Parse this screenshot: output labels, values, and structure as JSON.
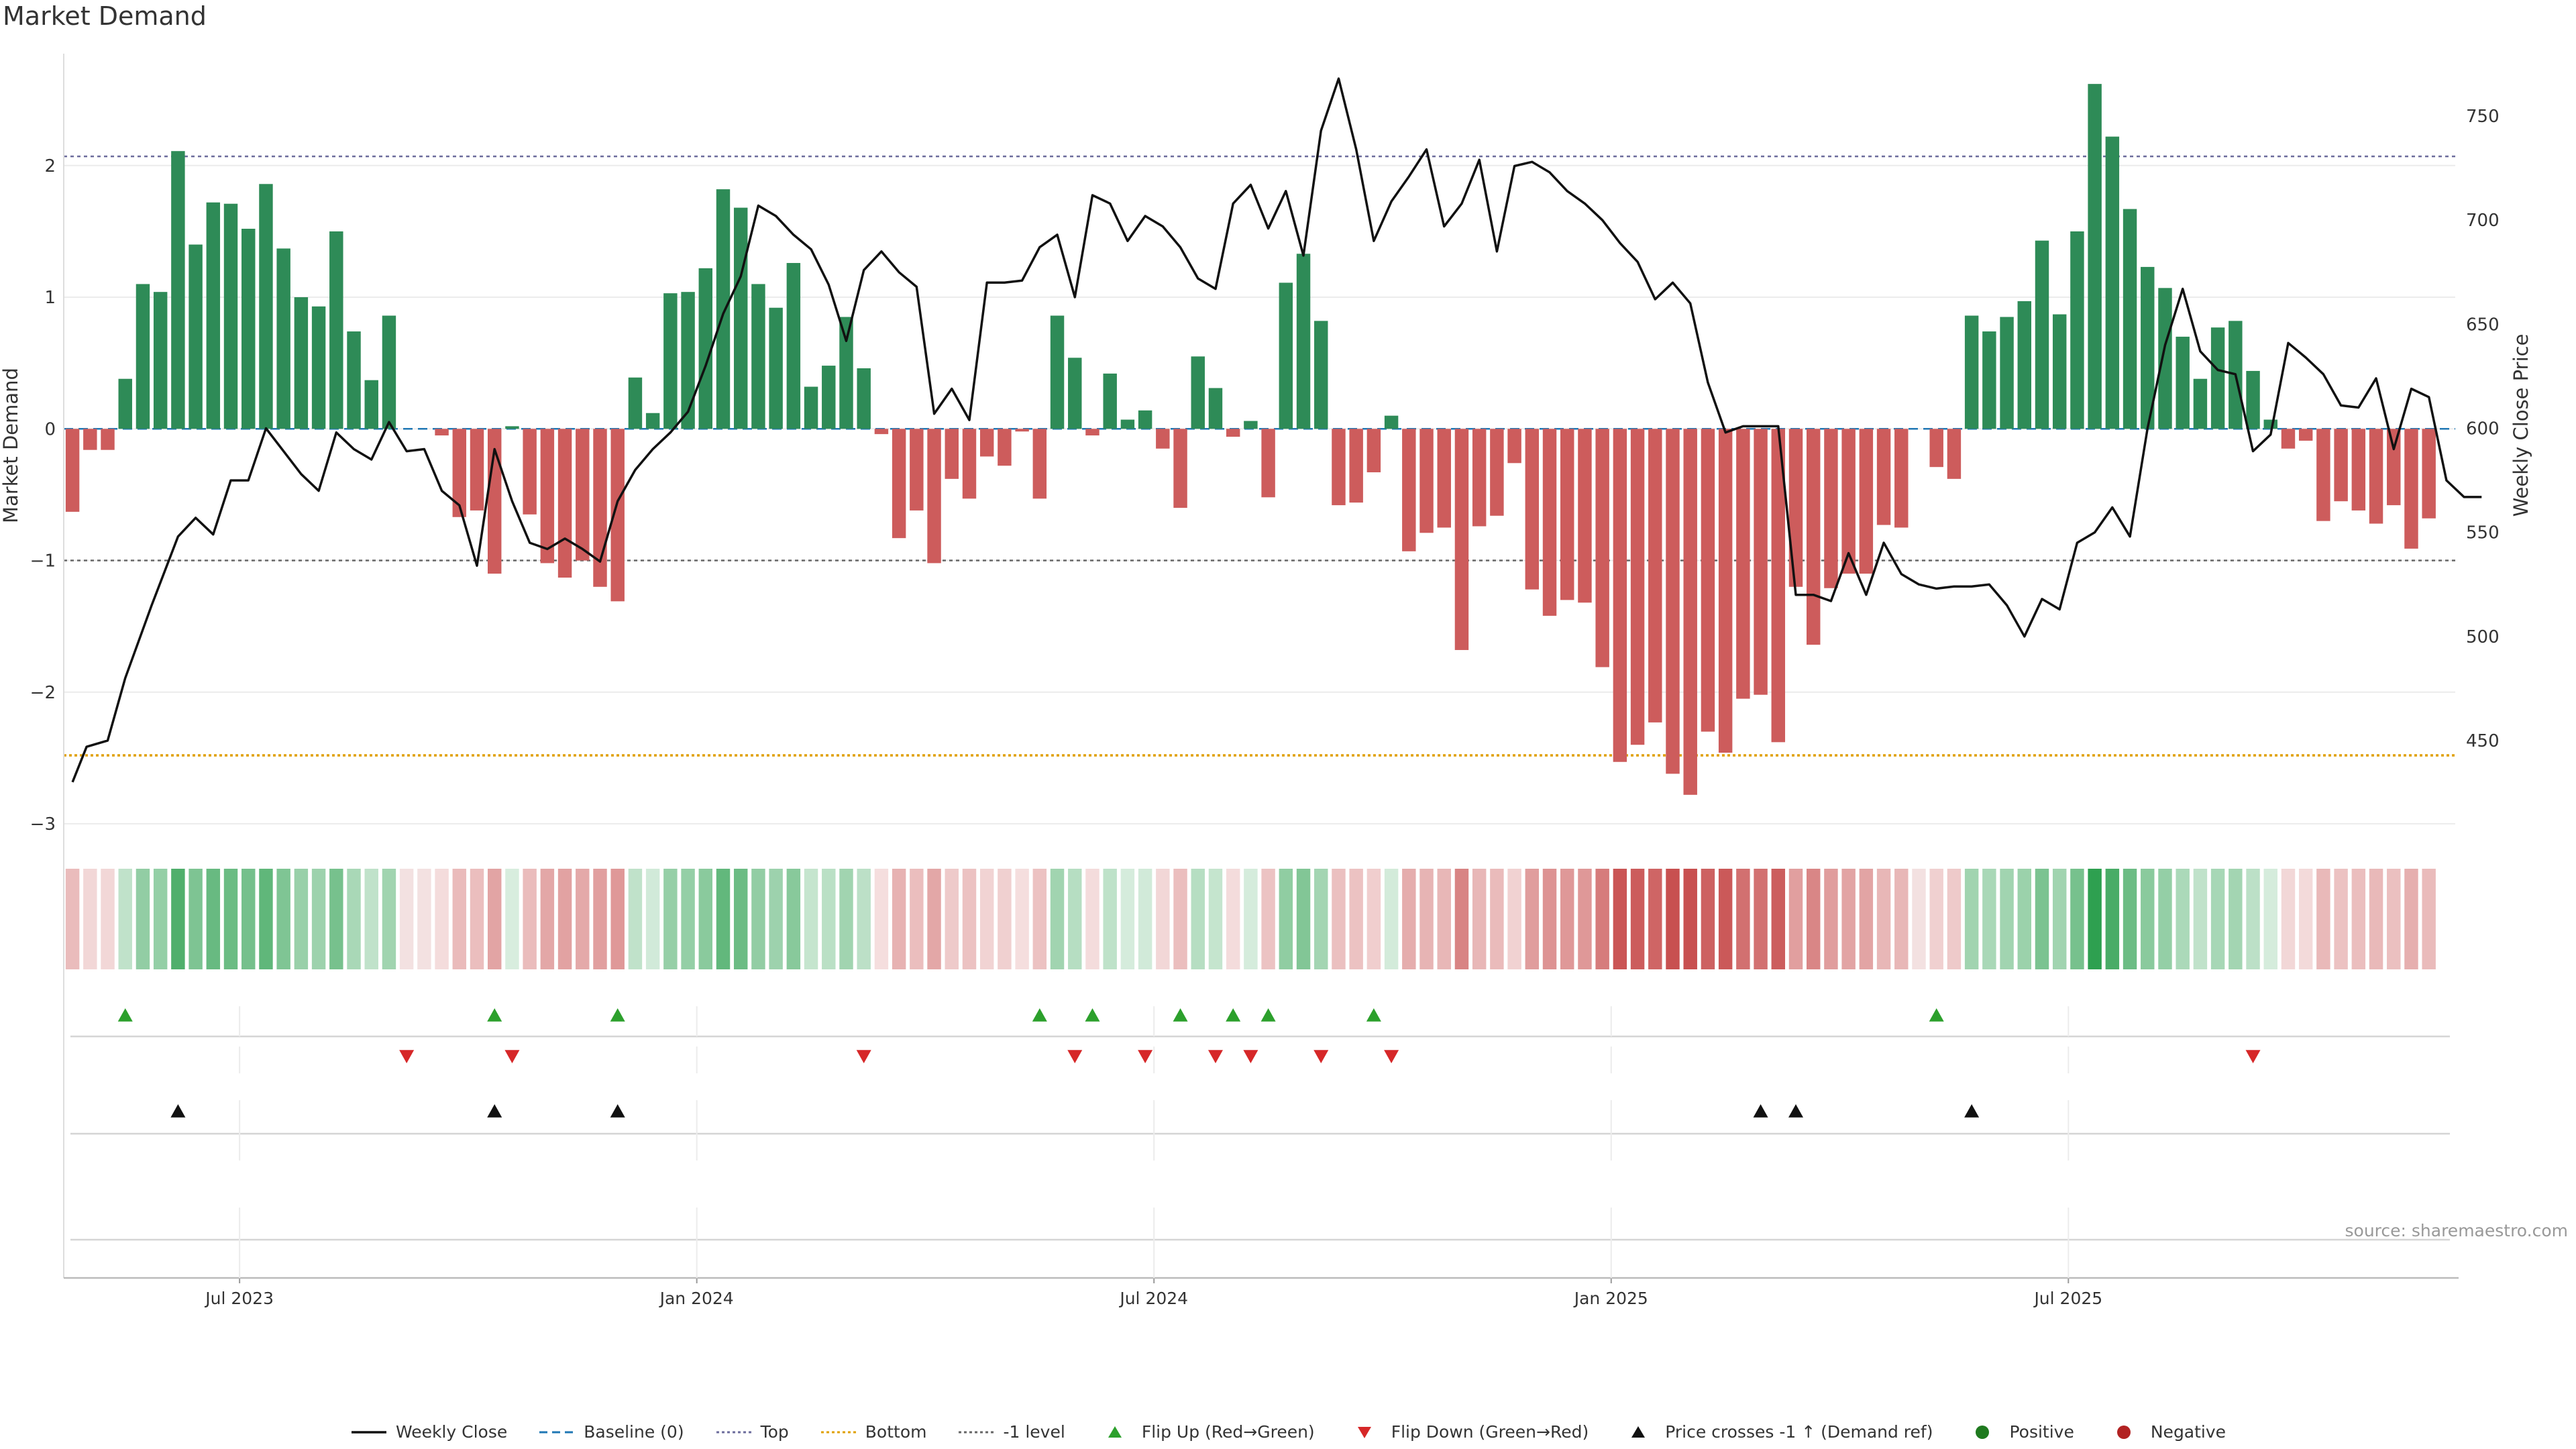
{
  "title": "Market Demand",
  "source": "source: sharemaestro.com",
  "colors": {
    "positive": "#2e8b57",
    "negative": "#cd5c5c",
    "line": "#111111",
    "top": "#6c6c9c",
    "bottom": "#e0a000",
    "neg_level": "#666666",
    "flip_up": "#2ca02c",
    "flip_down": "#d62728",
    "cross": "#111111",
    "legend_positive": "#1f7a1f",
    "legend_negative": "#b22222"
  },
  "legend": [
    {
      "label": "Weekly Close",
      "kind": "line",
      "color": "#111111"
    },
    {
      "label": "Baseline (0)",
      "kind": "dash",
      "color": "#1f77b4"
    },
    {
      "label": "Top",
      "kind": "dot",
      "color": "#6c6c9c"
    },
    {
      "label": "Bottom",
      "kind": "dot",
      "color": "#e0a000"
    },
    {
      "label": "-1 level",
      "kind": "dot",
      "color": "#666666"
    },
    {
      "label": "Flip Up (Red→Green)",
      "kind": "tri-up",
      "color": "#2ca02c"
    },
    {
      "label": "Flip Down (Green→Red)",
      "kind": "tri-down",
      "color": "#d62728"
    },
    {
      "label": "Price crosses -1 ↑ (Demand ref)",
      "kind": "tri-up",
      "color": "#111111"
    },
    {
      "label": "Positive",
      "kind": "circle",
      "color": "#1f7a1f"
    },
    {
      "label": "Negative",
      "kind": "circle",
      "color": "#b22222"
    }
  ],
  "chart_data": {
    "type": "bar",
    "title": "Market Demand",
    "ylabel": "Market Demand",
    "y2label": "Weekly Close Price",
    "ylim": [
      -3.0,
      2.85
    ],
    "y2lim": [
      410,
      780
    ],
    "yticks": [
      2,
      1,
      0,
      -1,
      -2,
      -3
    ],
    "ytick_labels": [
      "2",
      "1",
      "0",
      "−1",
      "−2",
      "−3"
    ],
    "y2ticks": [
      750,
      700,
      650,
      600,
      550,
      500,
      450
    ],
    "levels": {
      "top": 2.07,
      "bottom": -2.48,
      "neg_one": -1.0,
      "baseline": 0
    },
    "x_range_weeks": [
      0,
      136
    ],
    "xticks": [
      {
        "label": "Jul 2023",
        "week": 10
      },
      {
        "label": "Jan 2024",
        "week": 36
      },
      {
        "label": "Jul 2024",
        "week": 62
      },
      {
        "label": "Jan 2025",
        "week": 88
      },
      {
        "label": "Jul 2025",
        "week": 114
      }
    ],
    "demand": [
      -0.63,
      -0.16,
      -0.16,
      0.38,
      1.1,
      1.04,
      2.11,
      1.4,
      1.72,
      1.71,
      1.52,
      1.86,
      1.37,
      1.0,
      0.93,
      1.5,
      0.74,
      0.37,
      0.86,
      0,
      0,
      -0.05,
      -0.67,
      -0.62,
      -1.1,
      0.02,
      -0.65,
      -1.02,
      -1.13,
      -1.0,
      -1.2,
      -1.31,
      0.39,
      0.12,
      1.03,
      1.04,
      1.22,
      1.82,
      1.68,
      1.1,
      0.92,
      1.26,
      0.32,
      0.48,
      0.85,
      0.46,
      -0.04,
      -0.83,
      -0.62,
      -1.02,
      -0.38,
      -0.53,
      -0.21,
      -0.28,
      -0.02,
      -0.53,
      0.86,
      0.54,
      -0.05,
      0.42,
      0.07,
      0.14,
      -0.15,
      -0.6,
      0.55,
      0.31,
      -0.06,
      0.06,
      -0.52,
      1.11,
      1.33,
      0.82,
      -0.58,
      -0.56,
      -0.33,
      0.1,
      -0.93,
      -0.79,
      -0.75,
      -1.68,
      -0.74,
      -0.66,
      -0.26,
      -1.22,
      -1.42,
      -1.3,
      -1.32,
      -1.81,
      -2.53,
      -2.4,
      -2.23,
      -2.62,
      -2.78,
      -2.3,
      -2.46,
      -2.05,
      -2.02,
      -2.38,
      -1.2,
      -1.64,
      -1.21,
      -1.1,
      -1.1,
      -0.73,
      -0.75,
      0,
      -0.29,
      -0.38,
      0.86,
      0.74,
      0.85,
      0.97,
      1.43,
      0.87,
      1.5,
      2.62,
      2.22,
      1.67,
      1.23,
      1.07,
      0.7,
      0.38,
      0.77,
      0.82,
      0.44,
      0.07,
      -0.15,
      -0.09,
      -0.7,
      -0.55,
      -0.62,
      -0.72,
      -0.58,
      -0.91,
      -0.68
    ],
    "close": [
      [
        0.5,
        430
      ],
      [
        1.3,
        447
      ],
      [
        2.5,
        450
      ],
      [
        3.5,
        480
      ],
      [
        5,
        515
      ],
      [
        6.5,
        548
      ],
      [
        7.5,
        557
      ],
      [
        8.5,
        549
      ],
      [
        9.5,
        575
      ],
      [
        10.5,
        575
      ],
      [
        11.5,
        600
      ],
      [
        12.5,
        589
      ],
      [
        13.5,
        578
      ],
      [
        14.5,
        570
      ],
      [
        15.5,
        598
      ],
      [
        16.5,
        590
      ],
      [
        17.5,
        585
      ],
      [
        18.5,
        603
      ],
      [
        19.5,
        589
      ],
      [
        20.5,
        590
      ],
      [
        21.5,
        570
      ],
      [
        22.5,
        563
      ],
      [
        23.5,
        534
      ],
      [
        24.5,
        590
      ],
      [
        25.5,
        565
      ],
      [
        26.5,
        545
      ],
      [
        27.5,
        542
      ],
      [
        28.5,
        547
      ],
      [
        29.5,
        542
      ],
      [
        30.5,
        536
      ],
      [
        31.5,
        565
      ],
      [
        32.5,
        580
      ],
      [
        33.5,
        590
      ],
      [
        34.5,
        598
      ],
      [
        35.5,
        608
      ],
      [
        36.5,
        630
      ],
      [
        37.5,
        655
      ],
      [
        38.5,
        673
      ],
      [
        39.5,
        707
      ],
      [
        40.5,
        702
      ],
      [
        41.5,
        693
      ],
      [
        42.5,
        686
      ],
      [
        43.5,
        669
      ],
      [
        44.5,
        642
      ],
      [
        45.5,
        676
      ],
      [
        46.5,
        685
      ],
      [
        47.5,
        675
      ],
      [
        48.5,
        668
      ],
      [
        49.5,
        607
      ],
      [
        50.5,
        619
      ],
      [
        51.5,
        604
      ],
      [
        52.5,
        670
      ],
      [
        53.5,
        670
      ],
      [
        54.5,
        671
      ],
      [
        55.5,
        687
      ],
      [
        56.5,
        693
      ],
      [
        57.5,
        663
      ],
      [
        58.5,
        712
      ],
      [
        59.5,
        708
      ],
      [
        60.5,
        690
      ],
      [
        61.5,
        702
      ],
      [
        62.5,
        697
      ],
      [
        63.5,
        687
      ],
      [
        64.5,
        672
      ],
      [
        65.5,
        667
      ],
      [
        66.5,
        708
      ],
      [
        67.5,
        717
      ],
      [
        68.5,
        696
      ],
      [
        69.5,
        714
      ],
      [
        70.5,
        683
      ],
      [
        71.5,
        743
      ],
      [
        72.5,
        768
      ],
      [
        73.5,
        734
      ],
      [
        74.5,
        690
      ],
      [
        75.5,
        709
      ],
      [
        76.5,
        721
      ],
      [
        77.5,
        734
      ],
      [
        78.5,
        697
      ],
      [
        79.5,
        708
      ],
      [
        80.5,
        729
      ],
      [
        81.5,
        685
      ],
      [
        82.5,
        726
      ],
      [
        83.5,
        728
      ],
      [
        84.5,
        723
      ],
      [
        85.5,
        714
      ],
      [
        86.5,
        708
      ],
      [
        87.5,
        700
      ],
      [
        88.5,
        689
      ],
      [
        89.5,
        680
      ],
      [
        90.5,
        662
      ],
      [
        91.5,
        670
      ],
      [
        92.5,
        660
      ],
      [
        93.5,
        622
      ],
      [
        94.5,
        598
      ],
      [
        95.5,
        601
      ],
      [
        96.5,
        601
      ],
      [
        97.5,
        601
      ],
      [
        98.5,
        520
      ],
      [
        99.5,
        520
      ],
      [
        100.5,
        517
      ],
      [
        101.5,
        540
      ],
      [
        102.5,
        520
      ],
      [
        103.5,
        545
      ],
      [
        104.5,
        530
      ],
      [
        105.5,
        525
      ],
      [
        106.5,
        523
      ],
      [
        107.5,
        524
      ],
      [
        108.5,
        524
      ],
      [
        109.5,
        525
      ],
      [
        110.5,
        515
      ],
      [
        111.5,
        500
      ],
      [
        112.5,
        518
      ],
      [
        113.5,
        513
      ],
      [
        114.5,
        545
      ],
      [
        115.5,
        550
      ],
      [
        116.5,
        562
      ],
      [
        117.5,
        548
      ],
      [
        118.5,
        600
      ],
      [
        119.5,
        640
      ],
      [
        120.5,
        667
      ],
      [
        121.5,
        637
      ],
      [
        122.5,
        628
      ],
      [
        123.5,
        626
      ],
      [
        124.5,
        589
      ],
      [
        125.5,
        597
      ],
      [
        126.5,
        641
      ],
      [
        127.5,
        634
      ],
      [
        128.5,
        626
      ],
      [
        129.5,
        611
      ],
      [
        130.5,
        610
      ],
      [
        131.5,
        624
      ],
      [
        132.5,
        590
      ],
      [
        133.5,
        619
      ],
      [
        134.5,
        615
      ],
      [
        135.5,
        575
      ],
      [
        136.5,
        567
      ],
      [
        137.5,
        567
      ]
    ],
    "flip_up": [
      3.5,
      24.5,
      31.5,
      55.5,
      58.5,
      63.5,
      66.5,
      68.5,
      74.5,
      106.5
    ],
    "flip_down": [
      19.5,
      25.5,
      45.5,
      57.5,
      61.5,
      65.5,
      67.5,
      71.5,
      75.5,
      124.5
    ],
    "price_cross": [
      6.5,
      24.5,
      31.5,
      96.5,
      98.5,
      108.5
    ]
  }
}
